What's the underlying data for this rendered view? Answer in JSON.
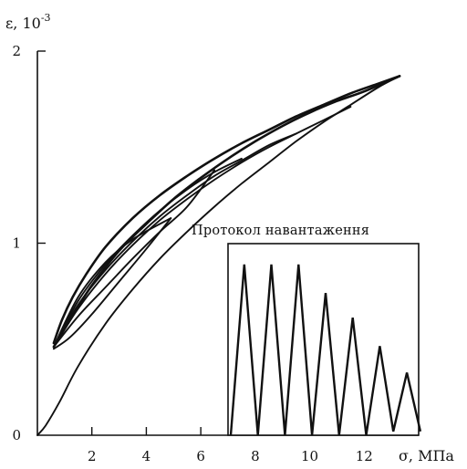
{
  "chart_data": {
    "type": "line",
    "title": "",
    "xlabel": "σ, МПа",
    "ylabel": "ε, 10",
    "ylabel_exponent": "-3",
    "xlim": [
      0,
      14
    ],
    "ylim": [
      0,
      2
    ],
    "x_ticks": [
      2,
      4,
      6,
      8,
      10,
      12
    ],
    "x_tick_labels": [
      "2",
      "4",
      "6",
      "8",
      "10",
      "12"
    ],
    "y_ticks": [
      0,
      1,
      2
    ],
    "y_tick_labels": [
      "0",
      "1",
      "2"
    ],
    "grid": false,
    "legend": "none",
    "series": [
      {
        "values_desc": "initial loading curve",
        "x": [
          0,
          0.3,
          0.8,
          1.5,
          2.5,
          3.5,
          4.5,
          5.5,
          6.5,
          7.5,
          8.5,
          9.5,
          10.5,
          11.5,
          12.5,
          13.3
        ],
        "y": [
          0,
          0.05,
          0.17,
          0.36,
          0.58,
          0.76,
          0.92,
          1.06,
          1.19,
          1.31,
          1.42,
          1.53,
          1.63,
          1.72,
          1.81,
          1.87
        ]
      },
      {
        "x": [
          13.3,
          12.5,
          11.5,
          10.5,
          9.5,
          8.5,
          7.5,
          6.5,
          5.5,
          4.5,
          3.5,
          2.5,
          1.8,
          1.3,
          0.9,
          0.6
        ],
        "y": [
          1.87,
          1.83,
          1.78,
          1.72,
          1.66,
          1.59,
          1.52,
          1.44,
          1.35,
          1.25,
          1.13,
          0.98,
          0.84,
          0.72,
          0.6,
          0.48
        ]
      },
      {
        "x": [
          0.6,
          1.2,
          2,
          3,
          4,
          5,
          6,
          7,
          8,
          9,
          10,
          11,
          12,
          13.3
        ],
        "y": [
          0.46,
          0.6,
          0.78,
          0.96,
          1.1,
          1.23,
          1.34,
          1.44,
          1.53,
          1.61,
          1.68,
          1.74,
          1.79,
          1.87
        ]
      },
      {
        "x": [
          0.6,
          1.5,
          2.5,
          3.5,
          4.5,
          5.5,
          6.5,
          7.5,
          8.5,
          9.5,
          10.5,
          11.5
        ],
        "y": [
          0.46,
          0.66,
          0.84,
          0.99,
          1.12,
          1.23,
          1.33,
          1.42,
          1.5,
          1.57,
          1.64,
          1.71
        ]
      },
      {
        "x": [
          0.6,
          1.5,
          2.5,
          3.5,
          4.5,
          5.5,
          6.5,
          7.5,
          8.5,
          9.5
        ],
        "y": [
          0.46,
          0.68,
          0.86,
          1.01,
          1.14,
          1.25,
          1.35,
          1.43,
          1.51,
          1.57
        ]
      },
      {
        "x": [
          0.6,
          1.5,
          2.5,
          3.5,
          4.5,
          5.5,
          6.5,
          7.5
        ],
        "y": [
          0.46,
          0.7,
          0.89,
          1.04,
          1.17,
          1.28,
          1.37,
          1.44
        ]
      },
      {
        "x": [
          0.6,
          1.5,
          2.5,
          3.5,
          4.5,
          5.5,
          6.5
        ],
        "y": [
          0.46,
          0.62,
          0.77,
          0.92,
          1.06,
          1.19,
          1.38
        ]
      },
      {
        "x": [
          0.6,
          1.2,
          2,
          3,
          4,
          4.9
        ],
        "y": [
          0.45,
          0.51,
          0.63,
          0.8,
          0.97,
          1.13
        ]
      },
      {
        "x": [
          0.6,
          1.5,
          2.5,
          3.5,
          4.9
        ],
        "y": [
          0.46,
          0.72,
          0.9,
          1.02,
          1.13
        ]
      }
    ],
    "inset": {
      "type": "line",
      "title": "Протокол навантаження",
      "x": [
        0,
        1,
        2,
        3,
        4,
        5,
        6,
        7,
        8,
        9,
        10,
        11,
        12,
        13,
        14
      ],
      "y": [
        0,
        0.9,
        0,
        0.9,
        0,
        0.9,
        0,
        0.75,
        0,
        0.62,
        0,
        0.47,
        0.02,
        0.33,
        0.02
      ]
    }
  }
}
